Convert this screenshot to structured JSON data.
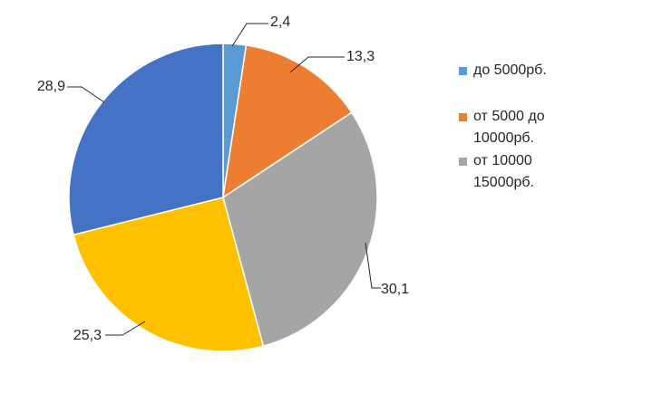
{
  "chart_data": {
    "type": "pie",
    "title": "",
    "slices": [
      {
        "label": "до 5000рб.",
        "value": 2.4,
        "value_label": "2,4",
        "color": "#5B9BD5"
      },
      {
        "label": "от 5000 до 10000рб.",
        "value": 13.3,
        "value_label": "13,3",
        "color": "#ED7D31"
      },
      {
        "label": "от 10000 15000рб.",
        "value": 30.1,
        "value_label": "30,1",
        "color": "#A5A5A5"
      },
      {
        "label": "",
        "value": 25.3,
        "value_label": "25,3",
        "color": "#FFC000"
      },
      {
        "label": "",
        "value": 28.9,
        "value_label": "28,9",
        "color": "#4472C4"
      }
    ],
    "legend": {
      "placement": "right",
      "entries": [
        {
          "label_lines": [
            "до 5000рб."
          ],
          "color": "#5B9BD5"
        },
        {
          "label_lines": [
            "от 5000 до",
            "10000рб."
          ],
          "color": "#ED7D31"
        },
        {
          "label_lines": [
            "от 10000",
            "15000рб."
          ],
          "color": "#A5A5A5"
        }
      ]
    },
    "start_angle_deg": 0,
    "direction": "clockwise",
    "slice_border_color": "#FFFFFF",
    "leader_line_color": "#262626"
  }
}
